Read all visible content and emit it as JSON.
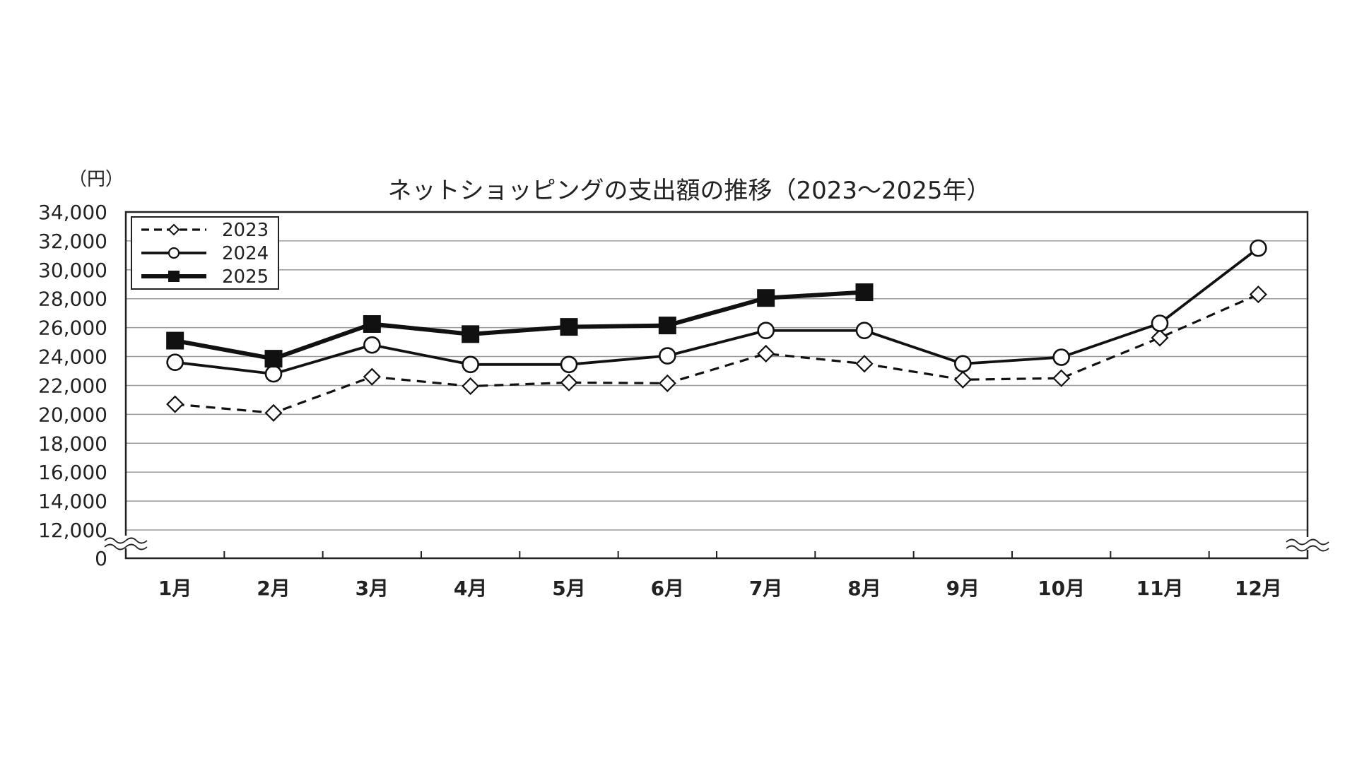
{
  "chart_data": {
    "type": "line",
    "title": "ネットショッピングの支出額の推移（2023～2025年）",
    "y_unit_label": "（円）",
    "categories": [
      "1月",
      "2月",
      "3月",
      "4月",
      "5月",
      "6月",
      "7月",
      "8月",
      "9月",
      "10月",
      "11月",
      "12月"
    ],
    "y_tick_labels": [
      "0",
      "12,000",
      "14,000",
      "16,000",
      "18,000",
      "20,000",
      "22,000",
      "24,000",
      "26,000",
      "28,000",
      "30,000",
      "32,000",
      "34,000"
    ],
    "y_tick_values": [
      0,
      12000,
      14000,
      16000,
      18000,
      20000,
      22000,
      24000,
      26000,
      28000,
      30000,
      32000,
      34000
    ],
    "ylim": [
      0,
      34000
    ],
    "y_axis_break": [
      0,
      12000
    ],
    "grid": true,
    "legend_position": "top-left",
    "series": [
      {
        "name": "2023",
        "line_style": "dashed",
        "marker": "open-diamond",
        "color": "#111111",
        "values": [
          20700,
          20100,
          22600,
          21950,
          22200,
          22150,
          24200,
          23500,
          22400,
          22500,
          25300,
          28300
        ]
      },
      {
        "name": "2024",
        "line_style": "solid",
        "marker": "open-circle",
        "color": "#111111",
        "values": [
          23600,
          22800,
          24800,
          23450,
          23450,
          24050,
          25800,
          25800,
          23500,
          23950,
          26300,
          31500
        ]
      },
      {
        "name": "2025",
        "line_style": "solid-bold",
        "marker": "filled-square",
        "color": "#111111",
        "values": [
          25100,
          23850,
          26250,
          25550,
          26050,
          26150,
          28050,
          28450,
          null,
          null,
          null,
          null
        ]
      }
    ]
  }
}
